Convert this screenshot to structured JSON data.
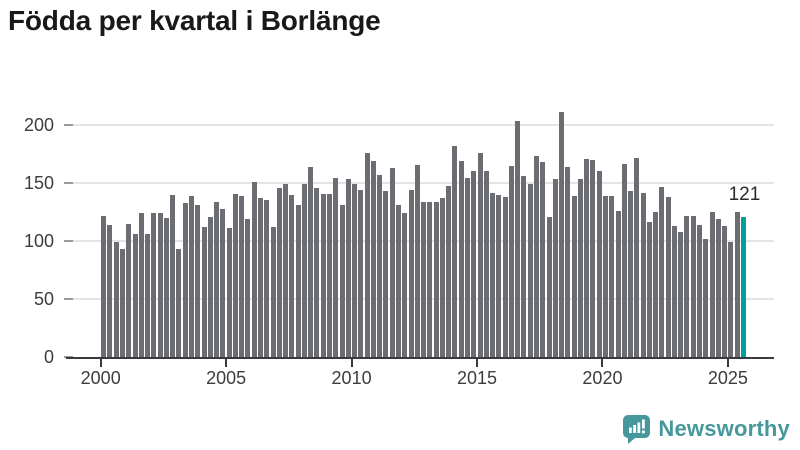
{
  "title": "Födda per kvartal i Borlänge",
  "value_label": "121",
  "branding": {
    "logo_text": "Newsworthy",
    "logo_icon": "newsworthy-speech-bubble-bars-icon"
  },
  "colors": {
    "bar": "#6c6c73",
    "highlight": "#00a09d",
    "brand_teal": "#46989d",
    "title_text": "#191919",
    "axis_text": "#3d3d3d",
    "gridline": "#e4e4e4",
    "axis_line": "#3a3a3e",
    "value_label_text": "#2b2b2b"
  },
  "chart_data": {
    "type": "bar",
    "title": "Födda per kvartal i Borlänge",
    "x_start": "2000-Q1",
    "x_end": "2025-Q3",
    "frequency": "quarterly",
    "values": [
      122,
      114,
      99,
      93,
      115,
      106,
      124,
      106,
      124,
      124,
      120,
      140,
      93,
      133,
      139,
      131,
      112,
      121,
      134,
      128,
      111,
      141,
      139,
      119,
      151,
      137,
      136,
      112,
      146,
      149,
      140,
      131,
      149,
      164,
      146,
      141,
      141,
      155,
      131,
      154,
      149,
      144,
      176,
      169,
      157,
      143,
      163,
      131,
      124,
      144,
      166,
      134,
      134,
      134,
      137,
      148,
      182,
      169,
      155,
      161,
      176,
      161,
      142,
      140,
      138,
      165,
      204,
      156,
      149,
      174,
      168,
      121,
      154,
      212,
      164,
      139,
      154,
      171,
      170,
      161,
      139,
      139,
      126,
      167,
      143,
      172,
      142,
      117,
      125,
      147,
      138,
      113,
      108,
      122,
      122,
      114,
      102,
      125,
      119,
      113,
      99,
      125,
      121
    ],
    "x_tick_labels": [
      "2000",
      "2005",
      "2010",
      "2015",
      "2020",
      "2025"
    ],
    "y_ticks": [
      0,
      50,
      100,
      150,
      200
    ],
    "ylim": [
      0,
      220
    ],
    "grid": true,
    "legend": false,
    "highlight_last_bar": true,
    "last_value_label": "121"
  }
}
